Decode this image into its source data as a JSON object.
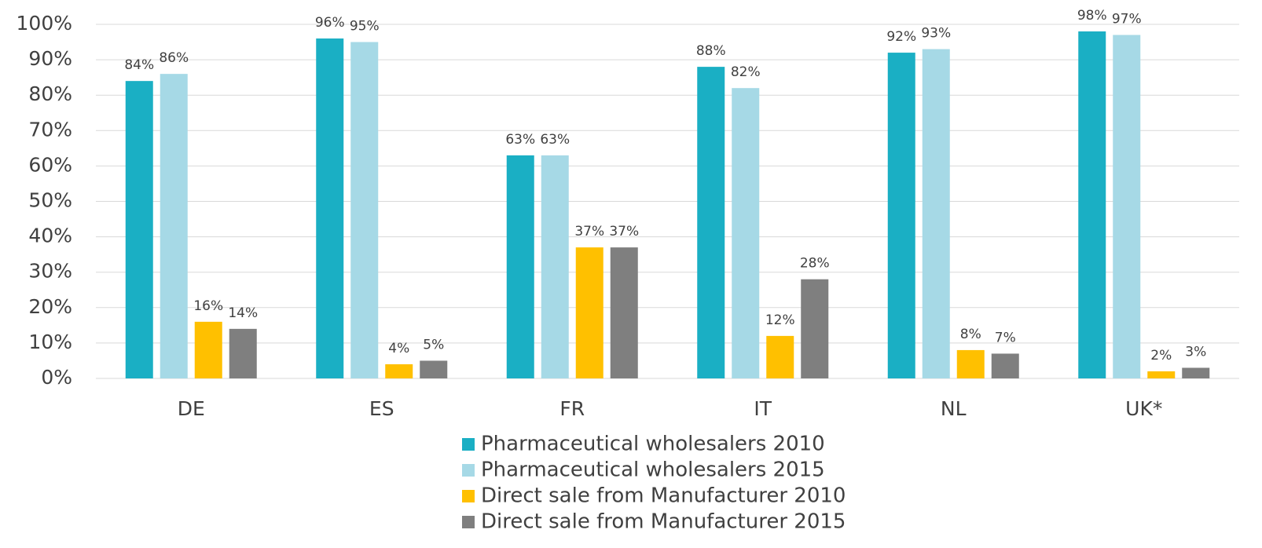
{
  "chart_data": {
    "type": "bar",
    "categories": [
      "DE",
      "ES",
      "FR",
      "IT",
      "NL",
      "UK*"
    ],
    "series": [
      {
        "name": "Pharmaceutical wholesalers 2010",
        "color": "#1aafc4",
        "values": [
          84,
          96,
          63,
          88,
          92,
          98
        ],
        "value_labels": [
          "84%",
          "96%",
          "63%",
          "88%",
          "92%",
          "98%"
        ]
      },
      {
        "name": "Pharmaceutical wholesalers 2015",
        "color": "#a6d9e6",
        "values": [
          86,
          95,
          63,
          82,
          93,
          97
        ],
        "value_labels": [
          "86%",
          "95%",
          "63%",
          "82%",
          "93%",
          "97%"
        ]
      },
      {
        "name": "Direct sale from Manufacturer 2010",
        "color": "#ffc000",
        "values": [
          16,
          4,
          37,
          12,
          8,
          2
        ],
        "value_labels": [
          "16%",
          "4%",
          "37%",
          "12%",
          "8%",
          "2%"
        ]
      },
      {
        "name": "Direct sale from Manufacturer 2015",
        "color": "#7f7f7f",
        "values": [
          14,
          5,
          37,
          28,
          7,
          3
        ],
        "value_labels": [
          "14%",
          "5%",
          "37%",
          "28%",
          "7%",
          "3%"
        ]
      }
    ],
    "ylim": [
      0,
      100
    ],
    "yticks": [
      {
        "value": 0,
        "label": "0%"
      },
      {
        "value": 10,
        "label": "10%"
      },
      {
        "value": 20,
        "label": "20%"
      },
      {
        "value": 30,
        "label": "30%"
      },
      {
        "value": 40,
        "label": "40%"
      },
      {
        "value": 50,
        "label": "50%"
      },
      {
        "value": 60,
        "label": "60%"
      },
      {
        "value": 70,
        "label": "70%"
      },
      {
        "value": 80,
        "label": "80%"
      },
      {
        "value": 90,
        "label": "90%"
      },
      {
        "value": 100,
        "label": "100%"
      }
    ],
    "grid": true
  }
}
